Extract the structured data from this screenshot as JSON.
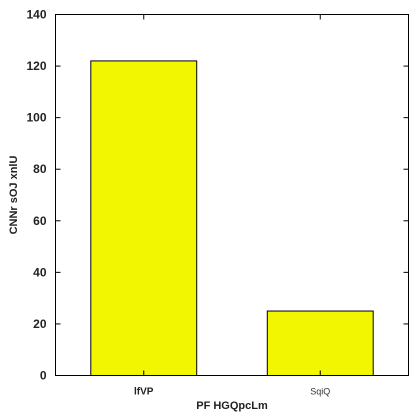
{
  "chart_data": {
    "type": "bar",
    "categories": [
      "lfVP",
      "SqiQ"
    ],
    "values": [
      122,
      25
    ],
    "xlabel": "PF HGQpcLm",
    "ylabel": "CNNr sOJ xnlU",
    "ylim": [
      0,
      140
    ],
    "yticks": [
      0,
      20,
      40,
      60,
      80,
      100,
      120,
      140
    ],
    "grid": false,
    "legend": "none",
    "bar_color": "#f2f600",
    "bar_edge_color": "#000000"
  }
}
